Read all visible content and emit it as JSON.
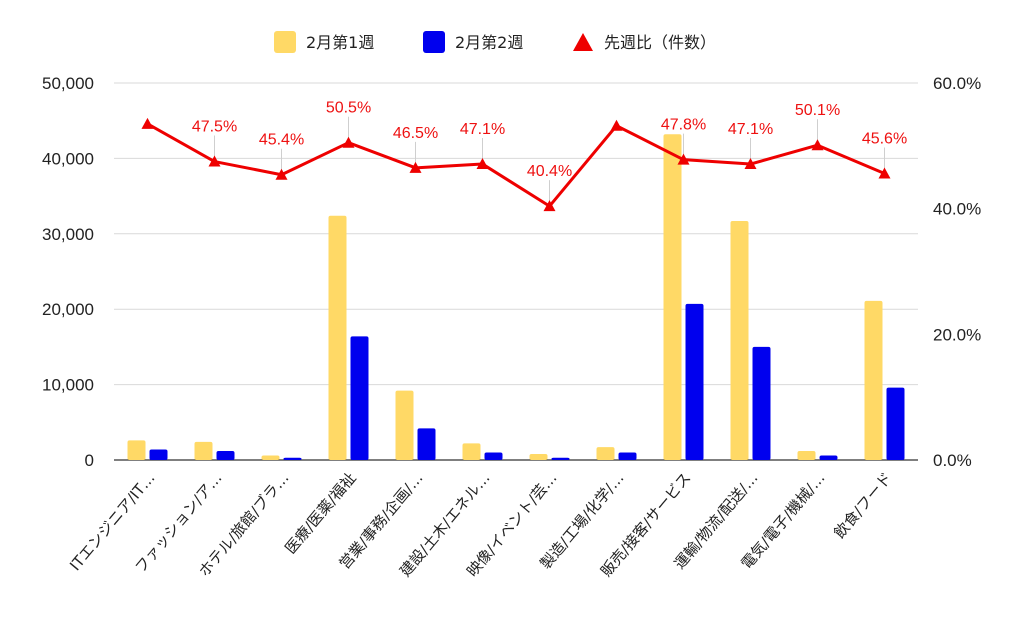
{
  "chart_data": {
    "type": "bar",
    "categories": [
      "ITエンジニア/IT…",
      "ファッション/ア…",
      "ホテル/旅館/ブラ…",
      "医療/医薬/福祉",
      "営業/事務/企画/…",
      "建設/土木/エネル…",
      "映像/イベント/芸…",
      "製造/工場/化学/…",
      "販売/接客/サービス",
      "運輸/物流/配送/…",
      "電気/電子/機械/…",
      "飲食/フード"
    ],
    "series": [
      {
        "name": "2月第1週",
        "color": "#ffd966",
        "axis": "left",
        "values": [
          2600,
          2400,
          600,
          32400,
          9200,
          2200,
          800,
          1700,
          43200,
          31700,
          1200,
          21100
        ]
      },
      {
        "name": "2月第2週",
        "color": "#0000ee",
        "axis": "left",
        "values": [
          1400,
          1200,
          300,
          16400,
          4200,
          1000,
          300,
          1000,
          20700,
          15000,
          600,
          9600
        ]
      },
      {
        "name": "先週比（件数）",
        "color": "#ee0000",
        "type": "line",
        "marker": "triangle",
        "axis": "right",
        "values": [
          53.5,
          47.5,
          45.4,
          50.5,
          46.5,
          47.1,
          40.4,
          53.2,
          47.8,
          47.1,
          50.1,
          45.6
        ]
      }
    ],
    "data_labels": [
      "",
      "47.5%",
      "45.4%",
      "50.5%",
      "46.5%",
      "47.1%",
      "40.4%",
      "",
      "47.8%",
      "47.1%",
      "50.1%",
      "45.6%"
    ],
    "left_axis": {
      "min": 0,
      "max": 50000,
      "ticks": [
        "0",
        "10,000",
        "20,000",
        "30,000",
        "40,000",
        "50,000"
      ]
    },
    "right_axis": {
      "min": 0,
      "max": 60,
      "ticks": [
        "0.0%",
        "20.0%",
        "40.0%",
        "60.0%"
      ]
    },
    "grid": true,
    "legend_position": "top-center"
  }
}
